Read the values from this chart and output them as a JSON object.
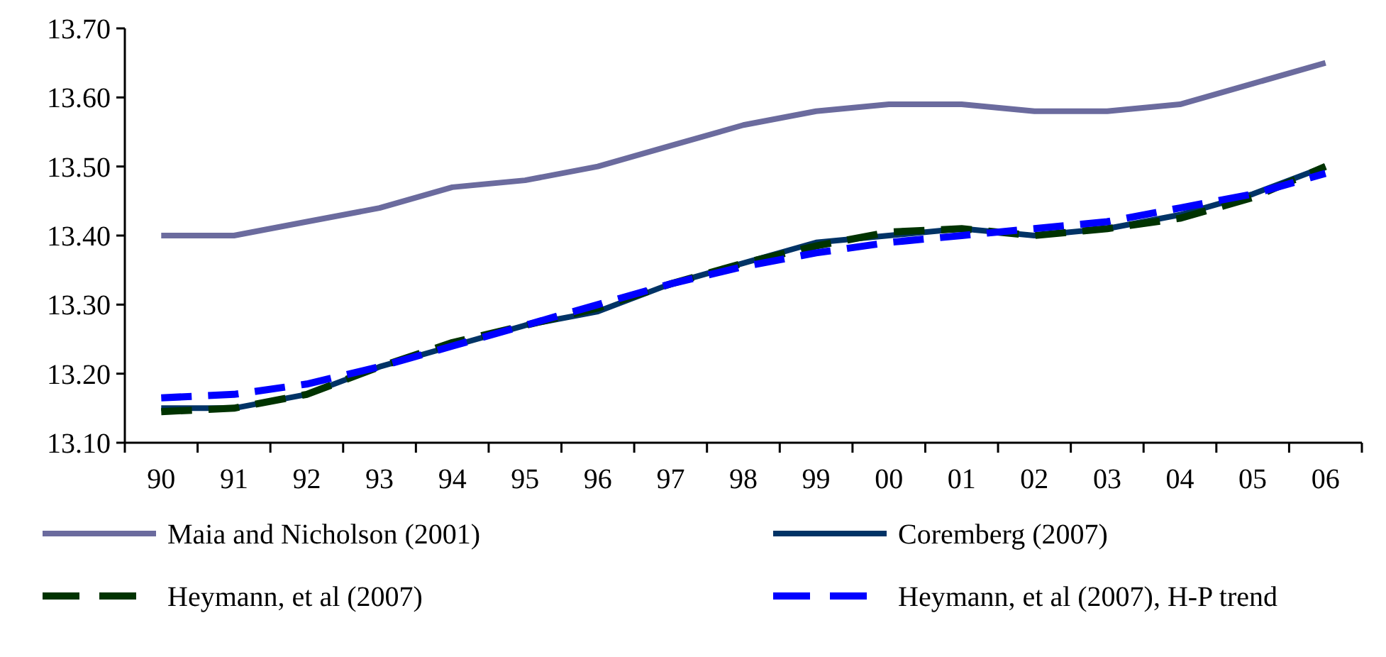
{
  "chart_data": {
    "type": "line",
    "categories": [
      "90",
      "91",
      "92",
      "93",
      "94",
      "95",
      "96",
      "97",
      "98",
      "99",
      "00",
      "01",
      "02",
      "03",
      "04",
      "05",
      "06"
    ],
    "ylim": [
      13.1,
      13.7
    ],
    "yticks": [
      {
        "value": 13.1,
        "label": "13.10"
      },
      {
        "value": 13.2,
        "label": "13.20"
      },
      {
        "value": 13.3,
        "label": "13.30"
      },
      {
        "value": 13.4,
        "label": "13.40"
      },
      {
        "value": 13.5,
        "label": "13.50"
      },
      {
        "value": 13.6,
        "label": "13.60"
      },
      {
        "value": 13.7,
        "label": "13.70"
      }
    ],
    "grid": false,
    "legend": "bottom",
    "marker": "none",
    "series": [
      {
        "name": "Maia and Nicholson (2001)",
        "color": "#6b6b9e",
        "line_style": "solid",
        "values": [
          13.4,
          13.4,
          13.42,
          13.44,
          13.47,
          13.48,
          13.5,
          13.53,
          13.56,
          13.58,
          13.59,
          13.59,
          13.58,
          13.58,
          13.59,
          13.62,
          13.65
        ]
      },
      {
        "name": "Coremberg (2007)",
        "color": "#003366",
        "line_style": "solid",
        "values": [
          13.15,
          13.15,
          13.17,
          13.21,
          13.24,
          13.27,
          13.29,
          13.33,
          13.36,
          13.39,
          13.4,
          13.41,
          13.4,
          13.41,
          13.43,
          13.46,
          13.5
        ]
      },
      {
        "name": "Heymann, et al (2007)",
        "color": "#003300",
        "line_style": "dashed",
        "values": [
          13.145,
          13.15,
          13.17,
          13.21,
          13.245,
          13.27,
          13.295,
          13.33,
          13.36,
          13.385,
          13.405,
          13.41,
          13.4,
          13.41,
          13.425,
          13.455,
          13.5
        ]
      },
      {
        "name": "Heymann, et al (2007), H-P trend",
        "color": "#0000ff",
        "line_style": "dashed",
        "values": [
          13.165,
          13.17,
          13.185,
          13.21,
          13.24,
          13.27,
          13.3,
          13.33,
          13.355,
          13.375,
          13.39,
          13.4,
          13.41,
          13.42,
          13.44,
          13.46,
          13.49
        ]
      }
    ]
  }
}
